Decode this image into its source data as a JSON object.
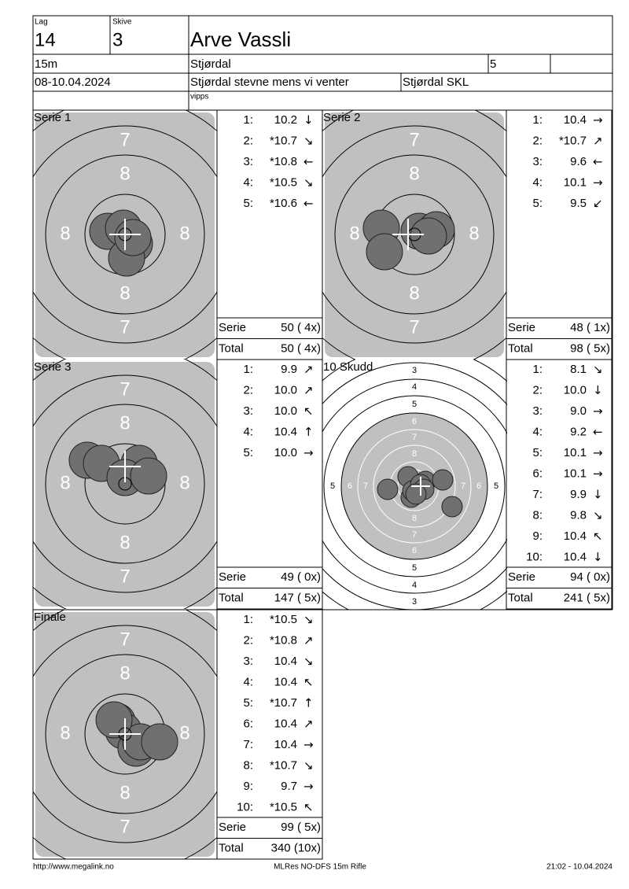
{
  "header": {
    "lag_label": "Lag",
    "lag": "14",
    "skive_label": "Skive",
    "skive": "3",
    "name": "Arve Vassli",
    "distance": "15m",
    "club": "Stjørdal",
    "field": "5",
    "date": "08-10.04.2024",
    "event": "Stjørdal stevne mens vi venter",
    "host": "Stjørdal SKL",
    "note": "vipps"
  },
  "target_labels": [
    "8",
    "7"
  ],
  "overview_labels": [
    "8",
    "7",
    "6",
    "5",
    "4",
    "3"
  ],
  "panels": [
    {
      "title": "Serie 1",
      "shots": [
        [
          "1:",
          "10.2",
          "↓"
        ],
        [
          "2:",
          "*10.7",
          "↘"
        ],
        [
          "3:",
          "*10.8",
          "←"
        ],
        [
          "4:",
          "*10.5",
          "↘"
        ],
        [
          "5:",
          "*10.6",
          "←"
        ]
      ],
      "summary": [
        [
          "Serie",
          "50 ( 4x)"
        ],
        [
          "Total",
          "50 ( 4x)"
        ]
      ]
    },
    {
      "title": "Serie 2",
      "shots": [
        [
          "1:",
          "10.4",
          "→"
        ],
        [
          "2:",
          "*10.7",
          "↗"
        ],
        [
          "3:",
          "9.6",
          "←"
        ],
        [
          "4:",
          "10.1",
          "→"
        ],
        [
          "5:",
          "9.5",
          "↙"
        ]
      ],
      "summary": [
        [
          "Serie",
          "48 ( 1x)"
        ],
        [
          "Total",
          "98 ( 5x)"
        ]
      ]
    },
    {
      "title": "Serie 3",
      "shots": [
        [
          "1:",
          "9.9",
          "↗"
        ],
        [
          "2:",
          "10.0",
          "↗"
        ],
        [
          "3:",
          "10.0",
          "↖"
        ],
        [
          "4:",
          "10.4",
          "↑"
        ],
        [
          "5:",
          "10.0",
          "→"
        ]
      ],
      "summary": [
        [
          "Serie",
          "49 ( 0x)"
        ],
        [
          "Total",
          "147 ( 5x)"
        ]
      ]
    },
    {
      "title": "10 Skudd",
      "shots": [
        [
          "1:",
          "8.1",
          "↘"
        ],
        [
          "2:",
          "10.0",
          "↓"
        ],
        [
          "3:",
          "9.0",
          "→"
        ],
        [
          "4:",
          "9.2",
          "←"
        ],
        [
          "5:",
          "10.1",
          "→"
        ],
        [
          "6:",
          "10.1",
          "→"
        ],
        [
          "7:",
          "9.9",
          "↓"
        ],
        [
          "8:",
          "9.8",
          "↘"
        ],
        [
          "9:",
          "10.4",
          "↖"
        ],
        [
          "10:",
          "10.4",
          "↓"
        ]
      ],
      "summary": [
        [
          "Serie",
          "94 ( 0x)"
        ],
        [
          "Total",
          "241 ( 5x)"
        ]
      ]
    },
    {
      "title": "Finale",
      "shots": [
        [
          "1:",
          "*10.5",
          "↘"
        ],
        [
          "2:",
          "*10.8",
          "↗"
        ],
        [
          "3:",
          "10.4",
          "↘"
        ],
        [
          "4:",
          "10.4",
          "↖"
        ],
        [
          "5:",
          "*10.7",
          "↑"
        ],
        [
          "6:",
          "10.4",
          "↗"
        ],
        [
          "7:",
          "10.4",
          "→"
        ],
        [
          "8:",
          "*10.7",
          "↘"
        ],
        [
          "9:",
          "9.7",
          "→"
        ],
        [
          "10:",
          "*10.5",
          "↖"
        ]
      ],
      "summary": [
        [
          "Serie",
          "99 ( 5x)"
        ],
        [
          "Total",
          "340 (10x)"
        ]
      ]
    }
  ],
  "footer": {
    "left": "http://www.megalink.no",
    "center": "MLRes NO-DFS 15m Rifle",
    "right": "21:02 - 10.04.2024"
  }
}
